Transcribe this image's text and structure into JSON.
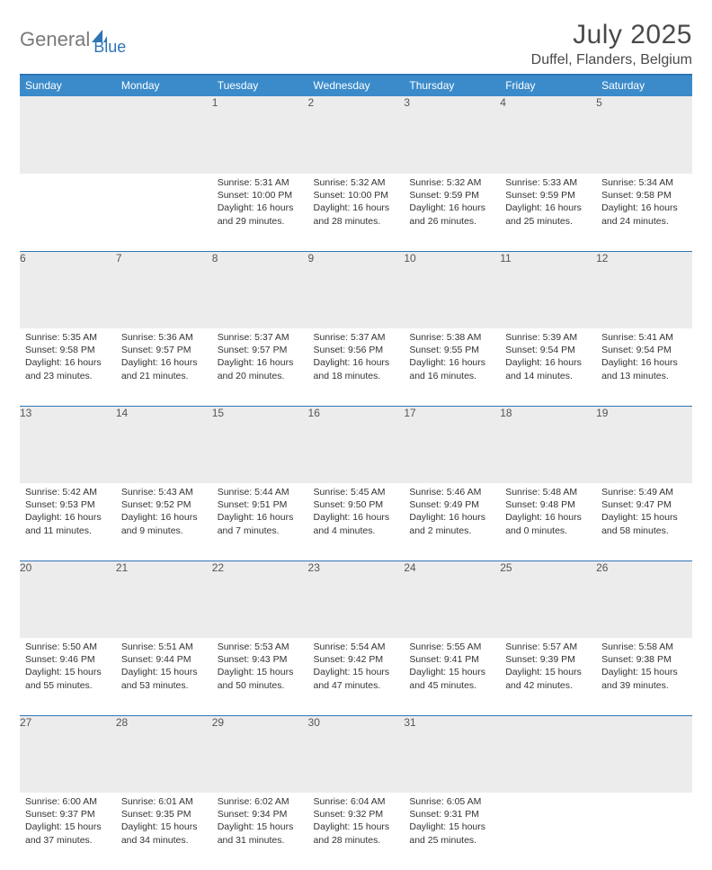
{
  "brand": {
    "word1": "General",
    "word2": "Blue"
  },
  "title": "July 2025",
  "location": "Duffel, Flanders, Belgium",
  "colors": {
    "header_bg": "#3b8bca",
    "accent_border": "#2e75b6",
    "daynum_bg": "#ececec",
    "text": "#3a3a3a"
  },
  "day_headers": [
    "Sunday",
    "Monday",
    "Tuesday",
    "Wednesday",
    "Thursday",
    "Friday",
    "Saturday"
  ],
  "weeks": [
    [
      null,
      null,
      {
        "n": "1",
        "sunrise": "5:31 AM",
        "sunset": "10:00 PM",
        "day_h": "16",
        "day_m": "29"
      },
      {
        "n": "2",
        "sunrise": "5:32 AM",
        "sunset": "10:00 PM",
        "day_h": "16",
        "day_m": "28"
      },
      {
        "n": "3",
        "sunrise": "5:32 AM",
        "sunset": "9:59 PM",
        "day_h": "16",
        "day_m": "26"
      },
      {
        "n": "4",
        "sunrise": "5:33 AM",
        "sunset": "9:59 PM",
        "day_h": "16",
        "day_m": "25"
      },
      {
        "n": "5",
        "sunrise": "5:34 AM",
        "sunset": "9:58 PM",
        "day_h": "16",
        "day_m": "24"
      }
    ],
    [
      {
        "n": "6",
        "sunrise": "5:35 AM",
        "sunset": "9:58 PM",
        "day_h": "16",
        "day_m": "23"
      },
      {
        "n": "7",
        "sunrise": "5:36 AM",
        "sunset": "9:57 PM",
        "day_h": "16",
        "day_m": "21"
      },
      {
        "n": "8",
        "sunrise": "5:37 AM",
        "sunset": "9:57 PM",
        "day_h": "16",
        "day_m": "20"
      },
      {
        "n": "9",
        "sunrise": "5:37 AM",
        "sunset": "9:56 PM",
        "day_h": "16",
        "day_m": "18"
      },
      {
        "n": "10",
        "sunrise": "5:38 AM",
        "sunset": "9:55 PM",
        "day_h": "16",
        "day_m": "16"
      },
      {
        "n": "11",
        "sunrise": "5:39 AM",
        "sunset": "9:54 PM",
        "day_h": "16",
        "day_m": "14"
      },
      {
        "n": "12",
        "sunrise": "5:41 AM",
        "sunset": "9:54 PM",
        "day_h": "16",
        "day_m": "13"
      }
    ],
    [
      {
        "n": "13",
        "sunrise": "5:42 AM",
        "sunset": "9:53 PM",
        "day_h": "16",
        "day_m": "11"
      },
      {
        "n": "14",
        "sunrise": "5:43 AM",
        "sunset": "9:52 PM",
        "day_h": "16",
        "day_m": "9"
      },
      {
        "n": "15",
        "sunrise": "5:44 AM",
        "sunset": "9:51 PM",
        "day_h": "16",
        "day_m": "7"
      },
      {
        "n": "16",
        "sunrise": "5:45 AM",
        "sunset": "9:50 PM",
        "day_h": "16",
        "day_m": "4"
      },
      {
        "n": "17",
        "sunrise": "5:46 AM",
        "sunset": "9:49 PM",
        "day_h": "16",
        "day_m": "2"
      },
      {
        "n": "18",
        "sunrise": "5:48 AM",
        "sunset": "9:48 PM",
        "day_h": "16",
        "day_m": "0"
      },
      {
        "n": "19",
        "sunrise": "5:49 AM",
        "sunset": "9:47 PM",
        "day_h": "15",
        "day_m": "58"
      }
    ],
    [
      {
        "n": "20",
        "sunrise": "5:50 AM",
        "sunset": "9:46 PM",
        "day_h": "15",
        "day_m": "55"
      },
      {
        "n": "21",
        "sunrise": "5:51 AM",
        "sunset": "9:44 PM",
        "day_h": "15",
        "day_m": "53"
      },
      {
        "n": "22",
        "sunrise": "5:53 AM",
        "sunset": "9:43 PM",
        "day_h": "15",
        "day_m": "50"
      },
      {
        "n": "23",
        "sunrise": "5:54 AM",
        "sunset": "9:42 PM",
        "day_h": "15",
        "day_m": "47"
      },
      {
        "n": "24",
        "sunrise": "5:55 AM",
        "sunset": "9:41 PM",
        "day_h": "15",
        "day_m": "45"
      },
      {
        "n": "25",
        "sunrise": "5:57 AM",
        "sunset": "9:39 PM",
        "day_h": "15",
        "day_m": "42"
      },
      {
        "n": "26",
        "sunrise": "5:58 AM",
        "sunset": "9:38 PM",
        "day_h": "15",
        "day_m": "39"
      }
    ],
    [
      {
        "n": "27",
        "sunrise": "6:00 AM",
        "sunset": "9:37 PM",
        "day_h": "15",
        "day_m": "37"
      },
      {
        "n": "28",
        "sunrise": "6:01 AM",
        "sunset": "9:35 PM",
        "day_h": "15",
        "day_m": "34"
      },
      {
        "n": "29",
        "sunrise": "6:02 AM",
        "sunset": "9:34 PM",
        "day_h": "15",
        "day_m": "31"
      },
      {
        "n": "30",
        "sunrise": "6:04 AM",
        "sunset": "9:32 PM",
        "day_h": "15",
        "day_m": "28"
      },
      {
        "n": "31",
        "sunrise": "6:05 AM",
        "sunset": "9:31 PM",
        "day_h": "15",
        "day_m": "25"
      },
      null,
      null
    ]
  ],
  "labels": {
    "sunrise_prefix": "Sunrise: ",
    "sunset_prefix": "Sunset: ",
    "daylight_prefix": "Daylight: ",
    "hours_word": " hours",
    "and_word": "and ",
    "minutes_word": " minutes."
  }
}
